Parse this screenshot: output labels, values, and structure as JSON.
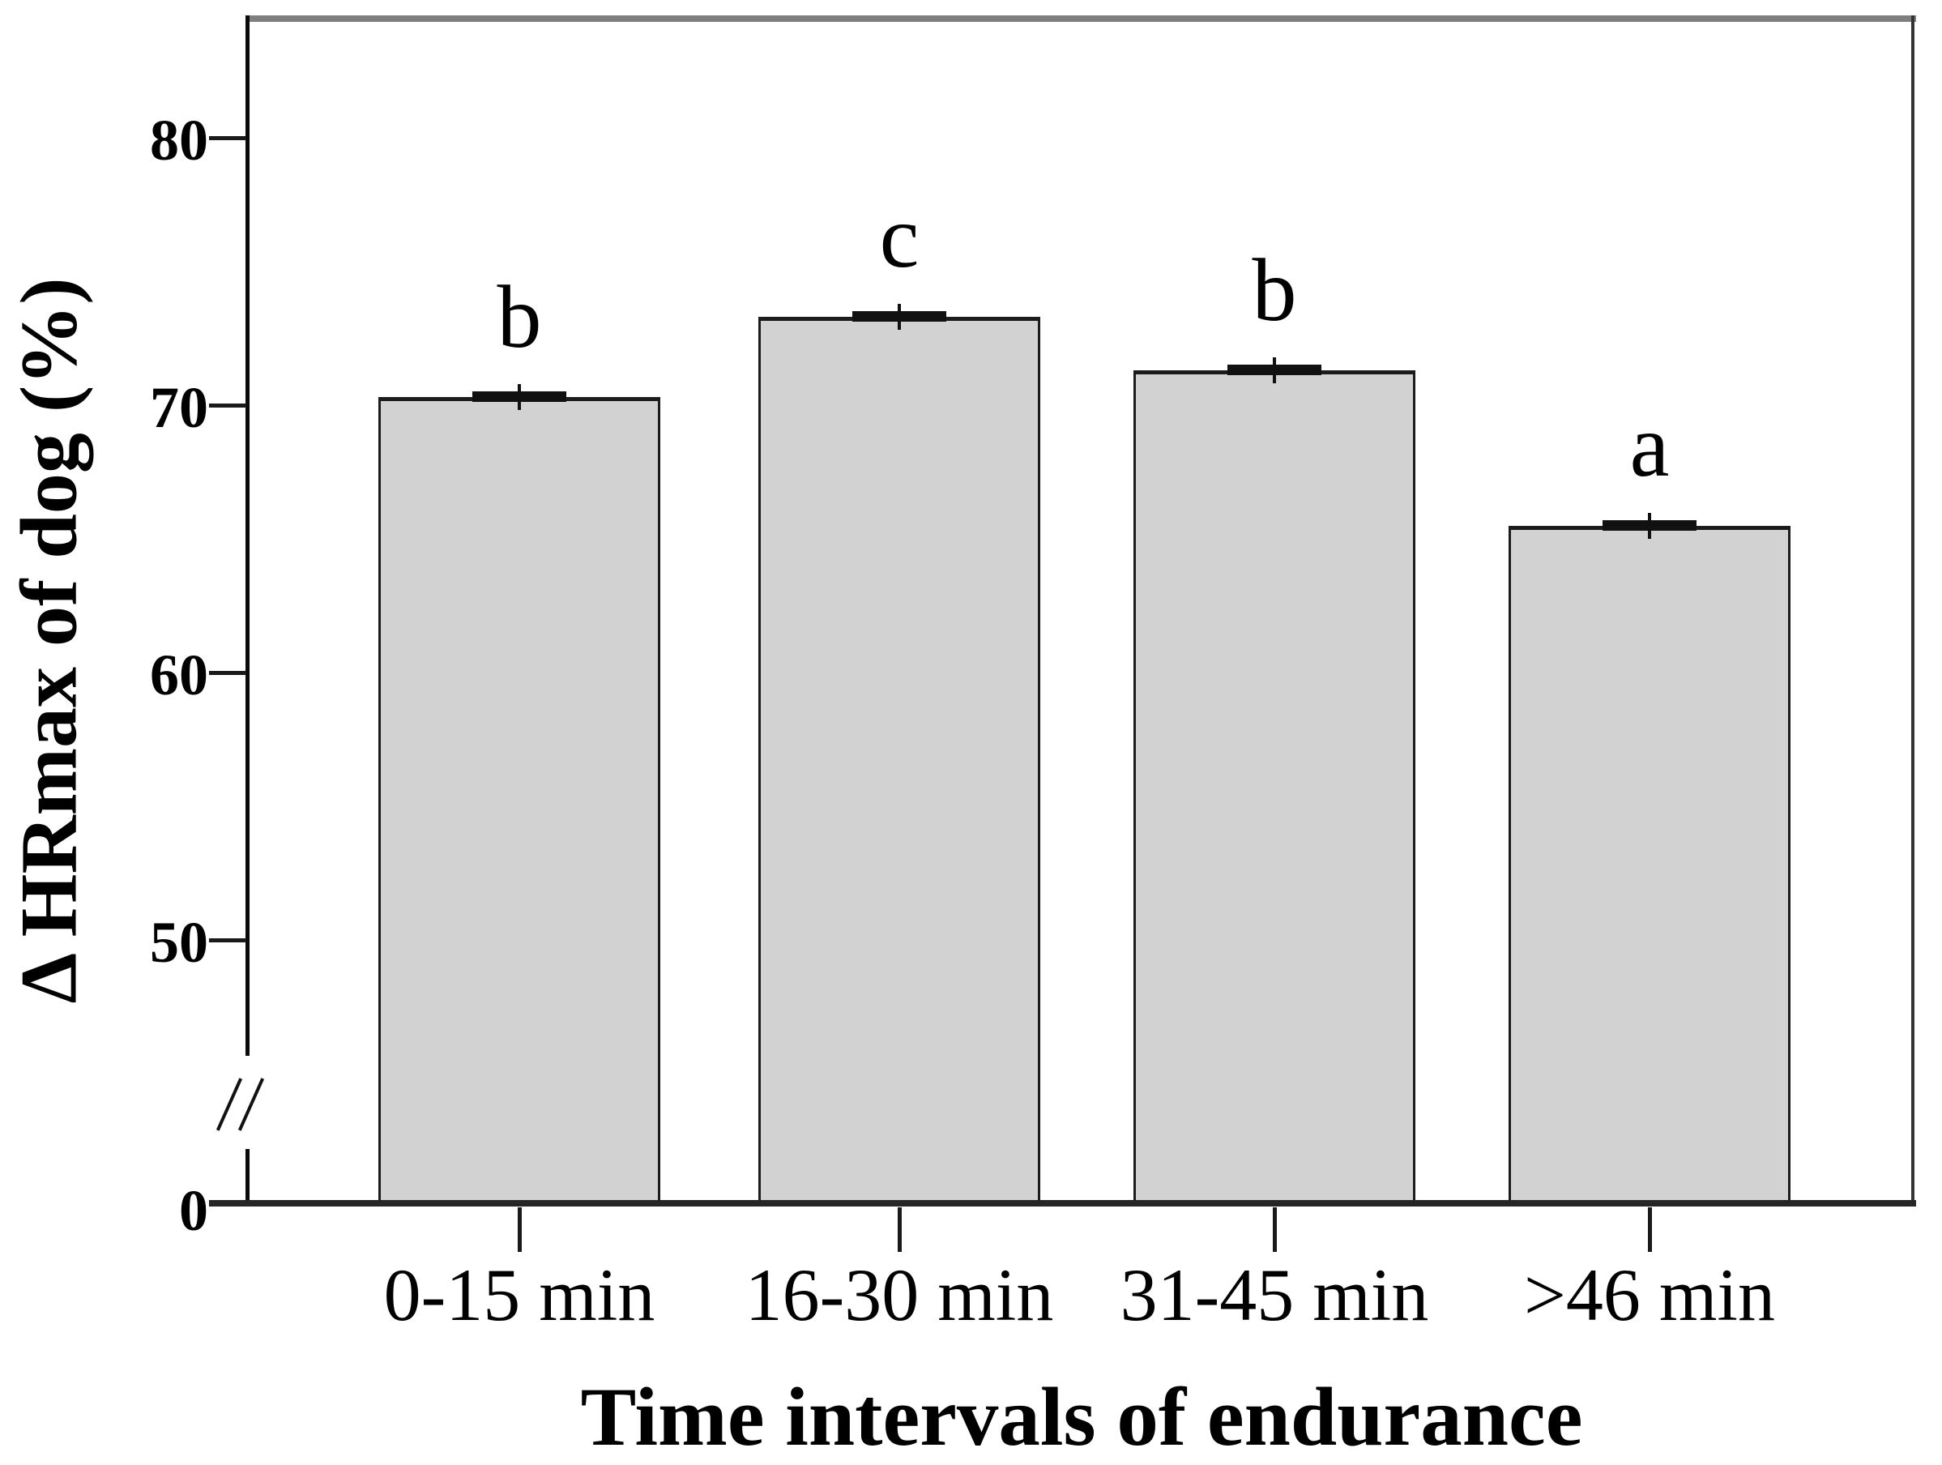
{
  "chart_data": {
    "type": "bar",
    "categories": [
      "0-15 min",
      "16-30 min",
      "31-45 min",
      ">46 min"
    ],
    "values": [
      70.3,
      73.3,
      71.3,
      65.5
    ],
    "error_bars": [
      0.2,
      0.2,
      0.2,
      0.2
    ],
    "significance_letters": [
      "b",
      "c",
      "b",
      "a"
    ],
    "xlabel": "Time intervals of endurance",
    "ylabel": "Δ HRmax of dog (%)",
    "ytick_values": [
      80,
      70,
      60,
      50
    ],
    "ytick_labels": [
      "80",
      "70",
      "60",
      "50"
    ],
    "origin_label": "0",
    "has_axis_break": true,
    "break_symbol": "//",
    "ylim_display": [
      46.6,
      84.6
    ],
    "grid": false,
    "legend": "none"
  },
  "colors": {
    "bar_fill": "#d2d2d2",
    "bar_border": "#1c1c1c",
    "error_bar": "#111111",
    "axis_line": "#0a0a0a",
    "baseline": "#262626",
    "plot_top_border": "#7f7f7f",
    "plot_right_border": "#343434",
    "text": "#000000",
    "background": "#ffffff"
  }
}
